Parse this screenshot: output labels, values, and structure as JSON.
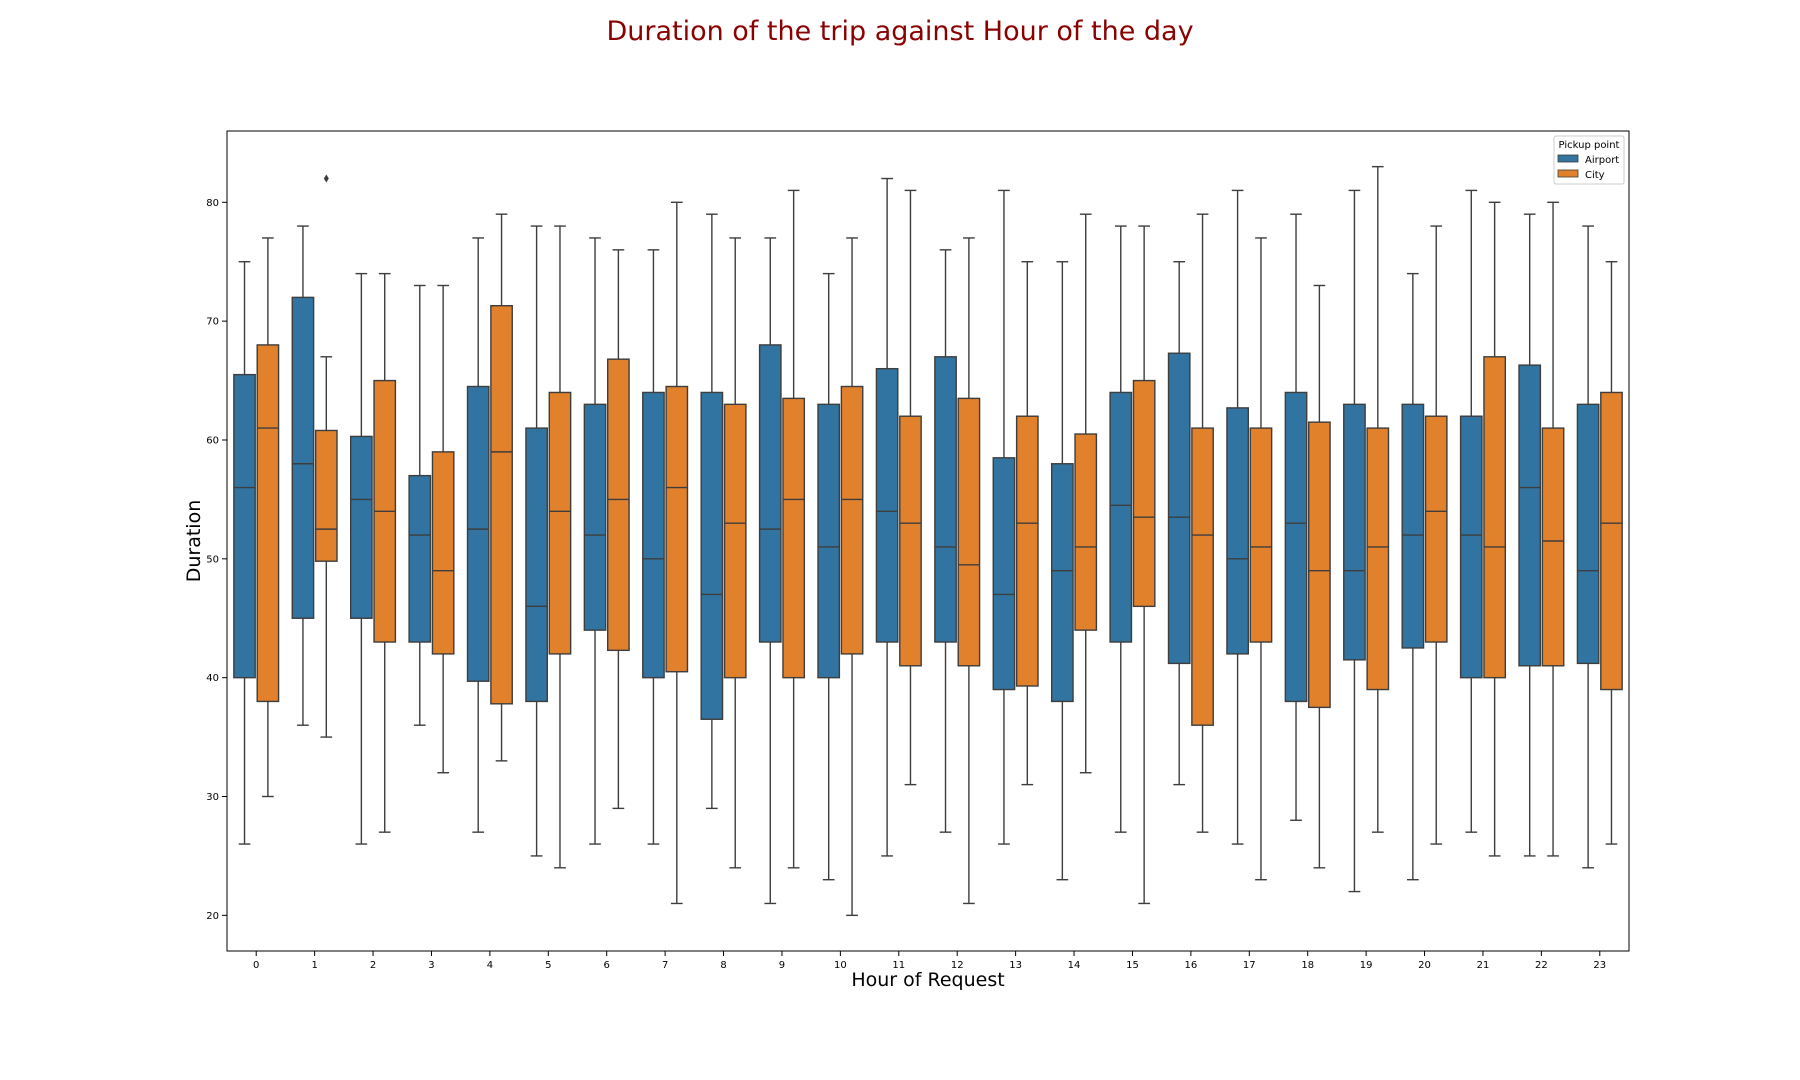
{
  "chart_data": {
    "type": "box",
    "title": "Duration of the trip against Hour of the day",
    "xlabel": "Hour of Request",
    "ylabel": "Duration",
    "categories": [
      "0",
      "1",
      "2",
      "3",
      "4",
      "5",
      "6",
      "7",
      "8",
      "9",
      "10",
      "11",
      "12",
      "13",
      "14",
      "15",
      "16",
      "17",
      "18",
      "19",
      "20",
      "21",
      "22",
      "23"
    ],
    "yticks": [
      20,
      30,
      40,
      50,
      60,
      70,
      80
    ],
    "ylim": [
      17,
      86
    ],
    "legend": {
      "title": "Pickup point",
      "position": "top-right"
    },
    "series": [
      {
        "name": "Airport",
        "color": "#3274a1",
        "boxes": [
          {
            "wlo": 26,
            "q1": 40,
            "med": 56,
            "q3": 65.5,
            "whi": 75
          },
          {
            "wlo": 36,
            "q1": 45,
            "med": 58,
            "q3": 72,
            "whi": 78
          },
          {
            "wlo": 26,
            "q1": 45,
            "med": 55,
            "q3": 60.3,
            "whi": 74
          },
          {
            "wlo": 36,
            "q1": 43,
            "med": 52,
            "q3": 57,
            "whi": 73
          },
          {
            "wlo": 27,
            "q1": 39.7,
            "med": 52.5,
            "q3": 64.5,
            "whi": 77
          },
          {
            "wlo": 25,
            "q1": 38,
            "med": 46,
            "q3": 61,
            "whi": 78
          },
          {
            "wlo": 26,
            "q1": 44,
            "med": 52,
            "q3": 63,
            "whi": 77
          },
          {
            "wlo": 26,
            "q1": 40,
            "med": 50,
            "q3": 64,
            "whi": 76
          },
          {
            "wlo": 29,
            "q1": 36.5,
            "med": 47,
            "q3": 64,
            "whi": 79
          },
          {
            "wlo": 21,
            "q1": 43,
            "med": 52.5,
            "q3": 68,
            "whi": 77
          },
          {
            "wlo": 23,
            "q1": 40,
            "med": 51,
            "q3": 63,
            "whi": 74
          },
          {
            "wlo": 25,
            "q1": 43,
            "med": 54,
            "q3": 66,
            "whi": 82
          },
          {
            "wlo": 27,
            "q1": 43,
            "med": 51,
            "q3": 67,
            "whi": 76
          },
          {
            "wlo": 26,
            "q1": 39,
            "med": 47,
            "q3": 58.5,
            "whi": 81
          },
          {
            "wlo": 23,
            "q1": 38,
            "med": 49,
            "q3": 58,
            "whi": 75
          },
          {
            "wlo": 27,
            "q1": 43,
            "med": 54.5,
            "q3": 64,
            "whi": 78
          },
          {
            "wlo": 31,
            "q1": 41.2,
            "med": 53.5,
            "q3": 67.3,
            "whi": 75
          },
          {
            "wlo": 26,
            "q1": 42,
            "med": 50,
            "q3": 62.7,
            "whi": 81
          },
          {
            "wlo": 28,
            "q1": 38,
            "med": 53,
            "q3": 64,
            "whi": 79
          },
          {
            "wlo": 22,
            "q1": 41.5,
            "med": 49,
            "q3": 63,
            "whi": 81
          },
          {
            "wlo": 23,
            "q1": 42.5,
            "med": 52,
            "q3": 63,
            "whi": 74
          },
          {
            "wlo": 27,
            "q1": 40,
            "med": 52,
            "q3": 62,
            "whi": 81
          },
          {
            "wlo": 25,
            "q1": 41,
            "med": 56,
            "q3": 66.3,
            "whi": 79
          },
          {
            "wlo": 24,
            "q1": 41.2,
            "med": 49,
            "q3": 63,
            "whi": 78
          }
        ]
      },
      {
        "name": "City",
        "color": "#e1812c",
        "boxes": [
          {
            "wlo": 30,
            "q1": 38,
            "med": 61,
            "q3": 68,
            "whi": 77
          },
          {
            "wlo": 35,
            "q1": 49.8,
            "med": 52.5,
            "q3": 60.8,
            "whi": 67,
            "fliers": [
              82
            ]
          },
          {
            "wlo": 27,
            "q1": 43,
            "med": 54,
            "q3": 65,
            "whi": 74
          },
          {
            "wlo": 32,
            "q1": 42,
            "med": 49,
            "q3": 59,
            "whi": 73
          },
          {
            "wlo": 33,
            "q1": 37.8,
            "med": 59,
            "q3": 71.3,
            "whi": 79
          },
          {
            "wlo": 24,
            "q1": 42,
            "med": 54,
            "q3": 64,
            "whi": 78
          },
          {
            "wlo": 29,
            "q1": 42.3,
            "med": 55,
            "q3": 66.8,
            "whi": 76
          },
          {
            "wlo": 21,
            "q1": 40.5,
            "med": 56,
            "q3": 64.5,
            "whi": 80
          },
          {
            "wlo": 24,
            "q1": 40,
            "med": 53,
            "q3": 63,
            "whi": 77
          },
          {
            "wlo": 24,
            "q1": 40,
            "med": 55,
            "q3": 63.5,
            "whi": 81
          },
          {
            "wlo": 20,
            "q1": 42,
            "med": 55,
            "q3": 64.5,
            "whi": 77
          },
          {
            "wlo": 31,
            "q1": 41,
            "med": 53,
            "q3": 62,
            "whi": 81
          },
          {
            "wlo": 21,
            "q1": 41,
            "med": 49.5,
            "q3": 63.5,
            "whi": 77
          },
          {
            "wlo": 31,
            "q1": 39.3,
            "med": 53,
            "q3": 62,
            "whi": 75
          },
          {
            "wlo": 32,
            "q1": 44,
            "med": 51,
            "q3": 60.5,
            "whi": 79
          },
          {
            "wlo": 21,
            "q1": 46,
            "med": 53.5,
            "q3": 65,
            "whi": 78
          },
          {
            "wlo": 27,
            "q1": 36,
            "med": 52,
            "q3": 61,
            "whi": 79
          },
          {
            "wlo": 23,
            "q1": 43,
            "med": 51,
            "q3": 61,
            "whi": 77
          },
          {
            "wlo": 24,
            "q1": 37.5,
            "med": 49,
            "q3": 61.5,
            "whi": 73
          },
          {
            "wlo": 27,
            "q1": 39,
            "med": 51,
            "q3": 61,
            "whi": 83
          },
          {
            "wlo": 26,
            "q1": 43,
            "med": 54,
            "q3": 62,
            "whi": 78
          },
          {
            "wlo": 25,
            "q1": 40,
            "med": 51,
            "q3": 67,
            "whi": 80
          },
          {
            "wlo": 25,
            "q1": 41,
            "med": 51.5,
            "q3": 61,
            "whi": 80
          },
          {
            "wlo": 26,
            "q1": 39,
            "med": 53,
            "q3": 64,
            "whi": 75
          }
        ]
      }
    ]
  }
}
